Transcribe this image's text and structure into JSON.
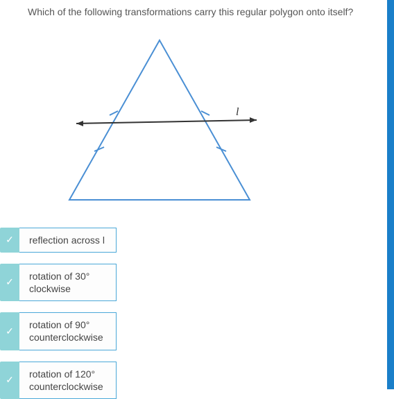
{
  "question": "Which of the following transformations carry this regular polygon onto itself?",
  "figure": {
    "triangle_color": "#4a8fd4",
    "triangle_stroke": 2,
    "line_color": "#333333",
    "line_label": "l",
    "label_font": "italic 14px serif",
    "tick_color": "#4a8fd4"
  },
  "options": [
    {
      "label": "reflection across l",
      "checked": true
    },
    {
      "label": "rotation of 30°\nclockwise",
      "checked": true
    },
    {
      "label": "rotation of 90°\ncounterclockwise",
      "checked": true
    },
    {
      "label": "rotation of 120°\ncounterclockwise",
      "checked": true
    }
  ],
  "colors": {
    "checkbox_bg": "#8fd4d8",
    "option_border": "#4aa8d8",
    "sidebar": "#1a7fc9"
  }
}
